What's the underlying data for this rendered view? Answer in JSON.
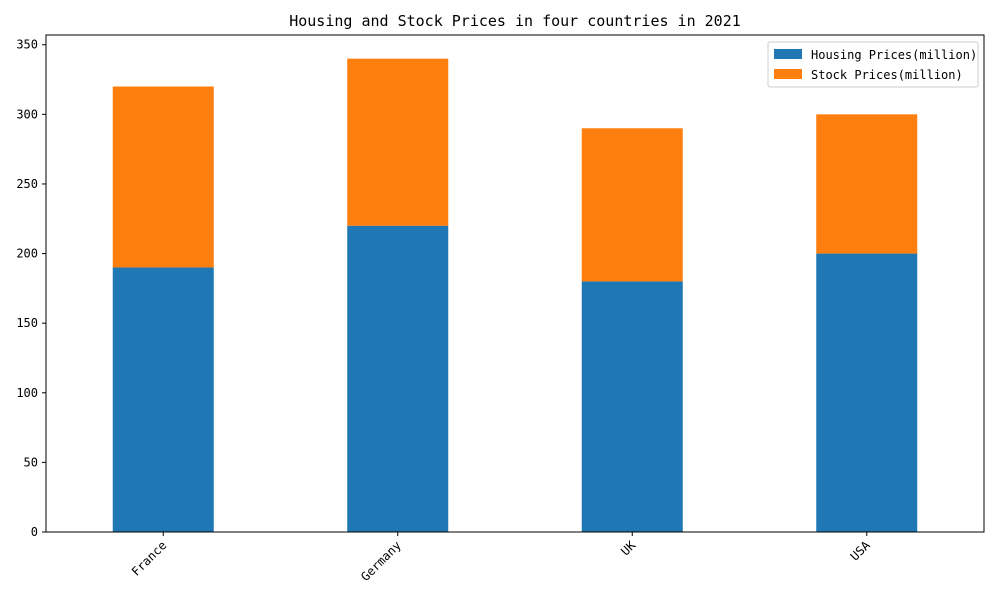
{
  "chart_data": {
    "type": "bar",
    "stacked": true,
    "title": "Housing and Stock Prices in four countries in 2021",
    "xlabel": "",
    "ylabel": "",
    "categories": [
      "France",
      "Germany",
      "UK",
      "USA"
    ],
    "series": [
      {
        "name": "Housing Prices(million)",
        "color": "#1f77b4",
        "values": [
          190,
          220,
          180,
          200
        ]
      },
      {
        "name": "Stock Prices(million)",
        "color": "#ff7f0e",
        "values": [
          130,
          120,
          110,
          100
        ]
      }
    ],
    "ylim": [
      0,
      357
    ],
    "yticks": [
      0,
      50,
      100,
      150,
      200,
      250,
      300,
      350
    ],
    "grid": false,
    "legend_position": "top-right"
  }
}
